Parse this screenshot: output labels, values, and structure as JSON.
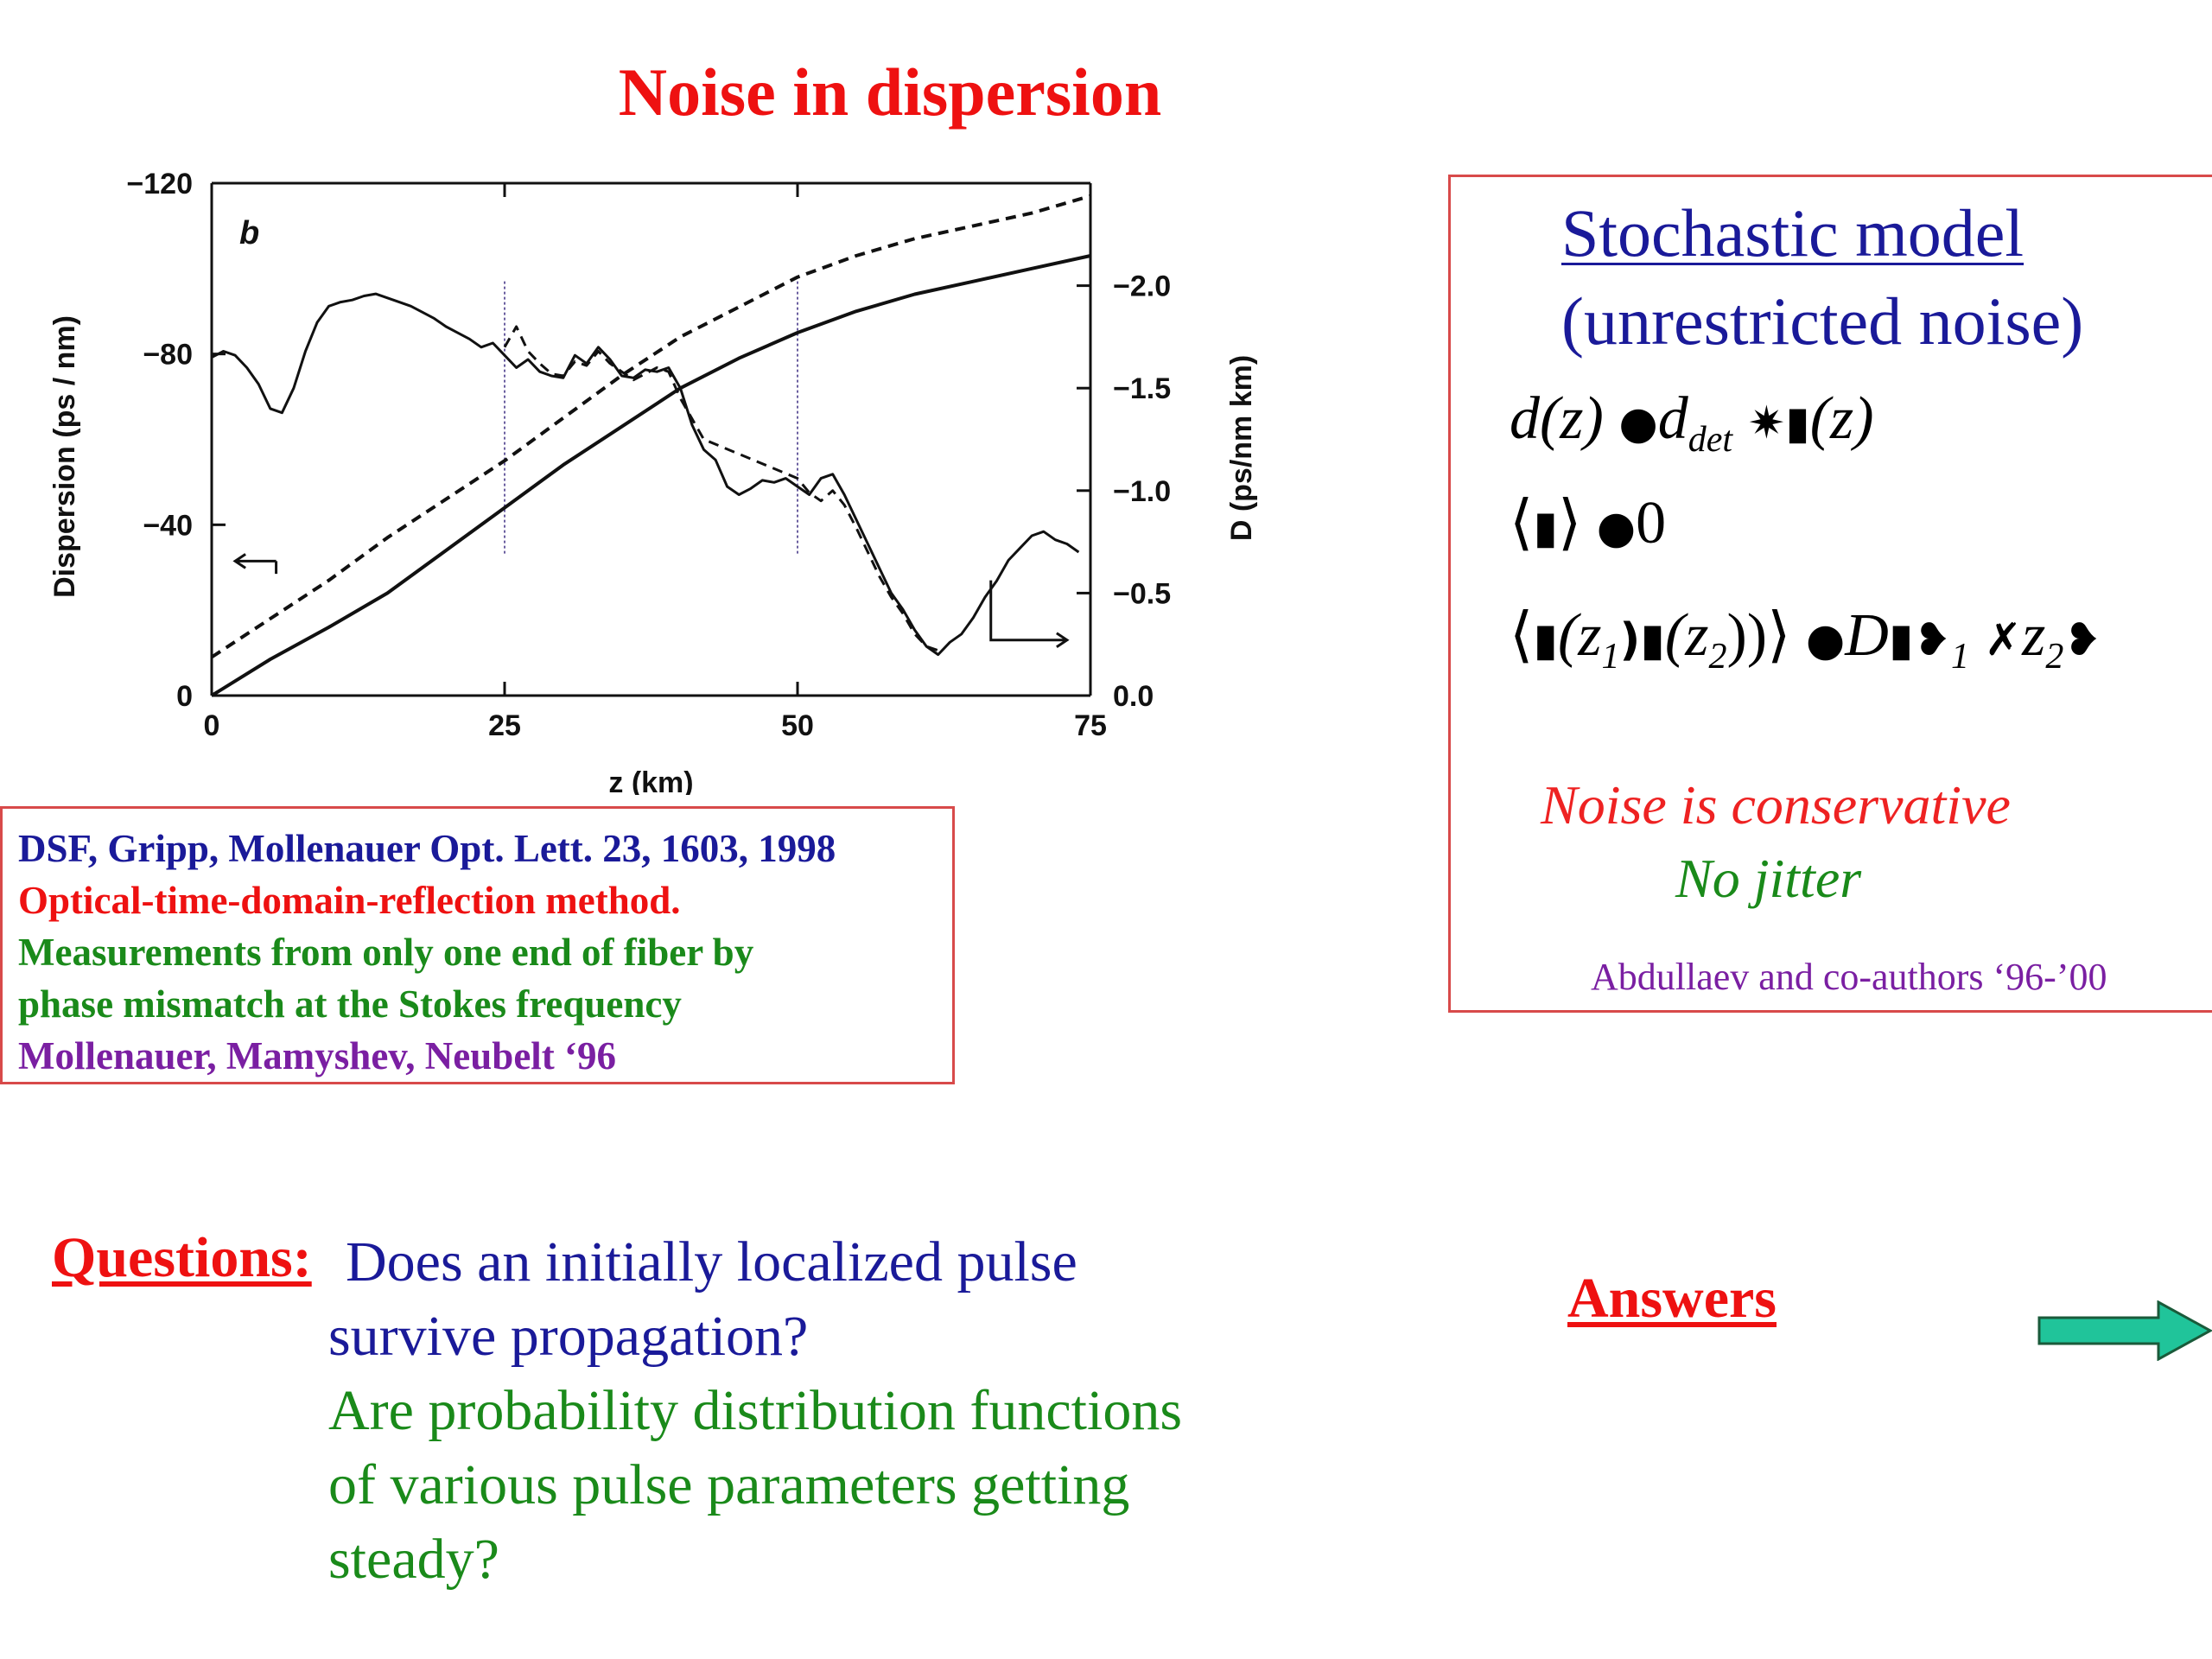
{
  "slide": {
    "title": "Noise in dispersion"
  },
  "chart_data": {
    "type": "line",
    "panel_label": "b",
    "xlabel": "z (km)",
    "ylabel_left": "Dispersion (ps / nm)",
    "ylabel_right": "D (ps/nm km)",
    "xlim": [
      0,
      75
    ],
    "ylim_left": [
      0,
      -120
    ],
    "ylim_right": [
      0.0,
      -2.5
    ],
    "x_ticks": [
      "0",
      "25",
      "50",
      "75"
    ],
    "y_ticks_left": [
      "0",
      "−40",
      "−80",
      "−120"
    ],
    "y_ticks_right": [
      "0.0",
      "−0.5",
      "−1.0",
      "−1.5",
      "−2.0"
    ],
    "grid": false,
    "vertical_markers_x": [
      25,
      50
    ],
    "series": [
      {
        "axis": "left",
        "style": "solid",
        "x": [
          0,
          5,
          10,
          15,
          20,
          25,
          30,
          35,
          40,
          45,
          50,
          55,
          60,
          65,
          70,
          75
        ],
        "y": [
          0,
          -8.5,
          -16,
          -24,
          -34,
          -44,
          -54,
          -63,
          -72,
          -79,
          -85,
          -90,
          -94,
          -97,
          -100,
          -103
        ]
      },
      {
        "axis": "left",
        "style": "dashed",
        "x": [
          0,
          5,
          10,
          15,
          20,
          25,
          30,
          35,
          40,
          45,
          50,
          55,
          60,
          65,
          70,
          75
        ],
        "y": [
          -9,
          -18,
          -27,
          -37,
          -46,
          -55,
          -65,
          -75,
          -84,
          -91,
          -98,
          -103,
          -107,
          -110,
          -113,
          -117
        ]
      },
      {
        "axis": "right",
        "style": "solid",
        "x": [
          0,
          1,
          2,
          3,
          4,
          5,
          6,
          7,
          8,
          9,
          10,
          11,
          12,
          13,
          14,
          15,
          16,
          17,
          18,
          19,
          20,
          21,
          22,
          23,
          24,
          25,
          26,
          27,
          28,
          29,
          30,
          31,
          32,
          33,
          34,
          35,
          36,
          37,
          38,
          39,
          40,
          41,
          42,
          43,
          44,
          45,
          46,
          47,
          48,
          49,
          50,
          51,
          52,
          53,
          54,
          55,
          56,
          57,
          58,
          59,
          60,
          61,
          62,
          63,
          64,
          65,
          66,
          67,
          68,
          69,
          70,
          71,
          72,
          73,
          74
        ],
        "y": [
          -1.65,
          -1.68,
          -1.66,
          -1.6,
          -1.52,
          -1.4,
          -1.38,
          -1.5,
          -1.68,
          -1.82,
          -1.9,
          -1.92,
          -1.93,
          -1.95,
          -1.96,
          -1.94,
          -1.92,
          -1.9,
          -1.87,
          -1.84,
          -1.8,
          -1.77,
          -1.74,
          -1.7,
          -1.72,
          -1.66,
          -1.6,
          -1.64,
          -1.58,
          -1.56,
          -1.55,
          -1.66,
          -1.62,
          -1.7,
          -1.64,
          -1.56,
          -1.55,
          -1.59,
          -1.58,
          -1.6,
          -1.5,
          -1.32,
          -1.2,
          -1.15,
          -1.02,
          -0.98,
          -1.01,
          -1.05,
          -1.04,
          -1.06,
          -1.02,
          -0.98,
          -1.06,
          -1.08,
          -0.98,
          -0.86,
          -0.74,
          -0.62,
          -0.5,
          -0.42,
          -0.32,
          -0.24,
          -0.2,
          -0.26,
          -0.3,
          -0.38,
          -0.48,
          -0.56,
          -0.66,
          -0.72,
          -0.78,
          -0.8,
          -0.76,
          -0.74,
          -0.7
        ]
      },
      {
        "axis": "right",
        "style": "dashed",
        "x": [
          25,
          26,
          27,
          28,
          29,
          30,
          31,
          32,
          33,
          34,
          35,
          36,
          37,
          38,
          39,
          40,
          41,
          42,
          50,
          51,
          52,
          53,
          54,
          55,
          56,
          57,
          58,
          59,
          60,
          61,
          62
        ],
        "y": [
          -1.7,
          -1.8,
          -1.68,
          -1.62,
          -1.57,
          -1.56,
          -1.63,
          -1.61,
          -1.68,
          -1.62,
          -1.58,
          -1.54,
          -1.57,
          -1.6,
          -1.58,
          -1.45,
          -1.35,
          -1.25,
          -1.06,
          -0.99,
          -0.95,
          -1.0,
          -0.93,
          -0.82,
          -0.7,
          -0.58,
          -0.48,
          -0.4,
          -0.3,
          -0.24,
          -0.22
        ]
      }
    ]
  },
  "reference": {
    "line1": "DSF,  Gripp, Mollenauer Opt. Lett. 23, 1603, 1998",
    "line2": "Optical-time-domain-reflection method.",
    "line3": "Measurements from only one end of fiber by",
    "line4": "phase mismatch at the Stokes frequency",
    "line5": "Mollenauer, Mamyshev, Neubelt ‘96"
  },
  "model": {
    "heading": "Stochastic model",
    "subheading": "(unrestricted noise)",
    "eq1": {
      "lhs": "d(z)",
      "op": "●",
      "var": "d",
      "sub": "det",
      "glyph": "✷▮",
      "arg": "(z)"
    },
    "eq2": {
      "open": "⟨",
      "glyph": "▮",
      "close": "⟩",
      "op": "●",
      "rhs": "0"
    },
    "eq3": {
      "open": "⟨",
      "g1": "▮",
      "a1": "(z",
      "s1": "1",
      "g2": ")▮",
      "a2": "(z",
      "s2": "2",
      "close": "))⟩",
      "op": "●",
      "d": "D",
      "g3": "▮❥",
      "s3": "1",
      "g4": "✗",
      "z2": "z",
      "s4": "2",
      "g5": "❥"
    },
    "note1": "Noise is conservative",
    "note2": "No jitter",
    "citation": "Abdullaev and co-authors ‘96-’00"
  },
  "questions": {
    "label": "Questions:",
    "line1": "Does an initially localized pulse",
    "line2": "survive propagation?",
    "line3": "Are probability distribution functions",
    "line4": "of various pulse parameters getting",
    "line5": "steady?"
  },
  "answers": {
    "label": "Answers "
  },
  "colors": {
    "title_red": "#ee1111",
    "navy": "#1a1a99",
    "green": "#1a8a1a",
    "purple": "#7a1fa2",
    "arrow_fill": "#20c49a"
  }
}
